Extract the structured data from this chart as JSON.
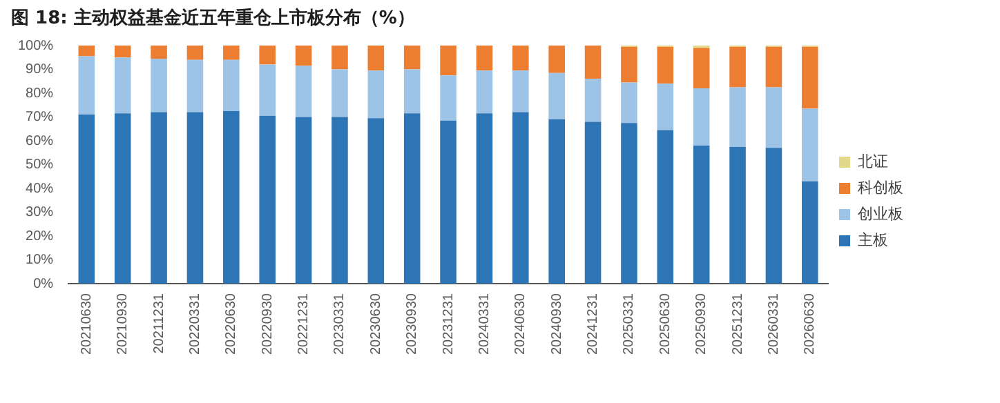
{
  "chart_data": {
    "type": "bar",
    "title": "图 18: 主动权益基金近五年重仓上市板分布（%）",
    "stacked": true,
    "categories": [
      "20210630",
      "20210930",
      "20211231",
      "20220331",
      "20220630",
      "20220930",
      "20221231",
      "20230331",
      "20230630",
      "20230930",
      "20231231",
      "20240331",
      "20240630",
      "20240930",
      "20241231",
      "20250331",
      "20250630",
      "20250930",
      "20251231",
      "20260331",
      "20260630"
    ],
    "series": [
      {
        "name": "主板",
        "color": "#2e75b6",
        "values": [
          71,
          71.5,
          72,
          72,
          72.5,
          70.5,
          70,
          70,
          69.5,
          71.5,
          68.5,
          71.5,
          72,
          69,
          68,
          67.5,
          64.5,
          58,
          57.5,
          57,
          43
        ]
      },
      {
        "name": "创业板",
        "color": "#9dc3e6",
        "values": [
          24.5,
          23.5,
          22.5,
          22,
          21.5,
          21.5,
          21.5,
          20,
          20,
          18.5,
          19,
          18,
          17.5,
          19.5,
          18,
          17,
          19.5,
          24,
          25,
          25.5,
          30.5
        ]
      },
      {
        "name": "科创板",
        "color": "#ed7d31",
        "values": [
          4.5,
          5,
          5.5,
          6,
          6,
          8,
          8.5,
          10,
          10.5,
          10,
          12.5,
          10.5,
          10.5,
          11.5,
          14,
          15,
          15.5,
          17,
          17,
          17,
          26
        ]
      },
      {
        "name": "北证",
        "color": "#e2d88c",
        "values": [
          0,
          0,
          0,
          0,
          0,
          0,
          0,
          0,
          0,
          0,
          0,
          0,
          0,
          0,
          0,
          0.5,
          0.5,
          1,
          0.5,
          0.5,
          0.5
        ]
      }
    ],
    "ylim": [
      0,
      100
    ],
    "yticks": [
      {
        "value": 0,
        "label": "0%"
      },
      {
        "value": 10,
        "label": "10%"
      },
      {
        "value": 20,
        "label": "20%"
      },
      {
        "value": 30,
        "label": "30%"
      },
      {
        "value": 40,
        "label": "40%"
      },
      {
        "value": 50,
        "label": "50%"
      },
      {
        "value": 60,
        "label": "60%"
      },
      {
        "value": 70,
        "label": "70%"
      },
      {
        "value": 80,
        "label": "80%"
      },
      {
        "value": 90,
        "label": "90%"
      },
      {
        "value": 100,
        "label": "100%"
      }
    ],
    "grid": false,
    "legend": "right"
  }
}
